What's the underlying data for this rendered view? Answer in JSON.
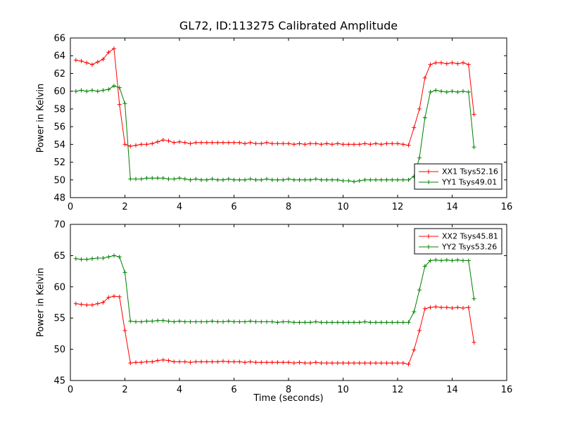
{
  "title": "GL72, ID:113275 Calibrated Amplitude",
  "chart_data": [
    {
      "type": "line",
      "ylabel": "Power in Kelvin",
      "xlabel": "",
      "xlim": [
        0,
        16
      ],
      "ylim": [
        48,
        66
      ],
      "xticks": [
        0,
        2,
        4,
        6,
        8,
        10,
        12,
        14,
        16
      ],
      "yticks": [
        48,
        50,
        52,
        54,
        56,
        58,
        60,
        62,
        64,
        66
      ],
      "grid": false,
      "legend_loc": "lower right",
      "x": [
        0.2,
        0.4,
        0.6,
        0.8,
        1.0,
        1.2,
        1.4,
        1.6,
        1.8,
        2.0,
        2.2,
        2.4,
        2.6,
        2.8,
        3.0,
        3.2,
        3.4,
        3.6,
        3.8,
        4.0,
        4.2,
        4.4,
        4.6,
        4.8,
        5.0,
        5.2,
        5.4,
        5.6,
        5.8,
        6.0,
        6.2,
        6.4,
        6.6,
        6.8,
        7.0,
        7.2,
        7.4,
        7.6,
        7.8,
        8.0,
        8.2,
        8.4,
        8.6,
        8.8,
        9.0,
        9.2,
        9.4,
        9.6,
        9.8,
        10.0,
        10.2,
        10.4,
        10.6,
        10.8,
        11.0,
        11.2,
        11.4,
        11.6,
        11.8,
        12.0,
        12.2,
        12.4,
        12.6,
        12.8,
        13.0,
        13.2,
        13.4,
        13.6,
        13.8,
        14.0,
        14.2,
        14.4,
        14.6,
        14.8
      ],
      "series": [
        {
          "name": "XX1 Tsys52.16",
          "color": "#ff0000",
          "marker": "+",
          "values": [
            63.5,
            63.4,
            63.2,
            63.0,
            63.3,
            63.6,
            64.4,
            64.8,
            58.5,
            54.0,
            53.8,
            53.9,
            54.0,
            54.0,
            54.1,
            54.3,
            54.5,
            54.4,
            54.2,
            54.3,
            54.2,
            54.1,
            54.2,
            54.2,
            54.2,
            54.2,
            54.2,
            54.2,
            54.2,
            54.2,
            54.2,
            54.1,
            54.2,
            54.1,
            54.1,
            54.2,
            54.1,
            54.1,
            54.1,
            54.1,
            54.0,
            54.1,
            54.0,
            54.1,
            54.1,
            54.0,
            54.1,
            54.0,
            54.1,
            54.0,
            54.0,
            54.0,
            54.0,
            54.1,
            54.0,
            54.1,
            54.0,
            54.1,
            54.1,
            54.1,
            54.0,
            53.9,
            55.9,
            58.0,
            61.5,
            63.0,
            63.2,
            63.2,
            63.1,
            63.2,
            63.1,
            63.2,
            63.0,
            57.4
          ]
        },
        {
          "name": "YY1 Tsys49.01",
          "color": "#008000",
          "marker": "+",
          "values": [
            60.0,
            60.1,
            60.0,
            60.1,
            60.0,
            60.1,
            60.2,
            60.6,
            60.4,
            58.6,
            50.1,
            50.1,
            50.1,
            50.2,
            50.2,
            50.2,
            50.2,
            50.1,
            50.1,
            50.2,
            50.1,
            50.0,
            50.1,
            50.0,
            50.0,
            50.1,
            50.0,
            50.0,
            50.1,
            50.0,
            50.0,
            50.0,
            50.1,
            50.0,
            50.0,
            50.1,
            50.0,
            50.0,
            50.0,
            50.1,
            50.0,
            50.0,
            50.0,
            50.0,
            50.1,
            50.0,
            50.0,
            50.0,
            50.0,
            49.9,
            49.9,
            49.8,
            49.9,
            50.0,
            50.0,
            50.0,
            50.0,
            50.0,
            50.0,
            50.0,
            50.0,
            50.0,
            50.4,
            52.5,
            57.0,
            59.9,
            60.1,
            60.0,
            59.9,
            60.0,
            59.9,
            60.0,
            59.9,
            53.7
          ]
        }
      ]
    },
    {
      "type": "line",
      "ylabel": "Power in Kelvin",
      "xlabel": "Time (seconds)",
      "xlim": [
        0,
        16
      ],
      "ylim": [
        45,
        70
      ],
      "xticks": [
        0,
        2,
        4,
        6,
        8,
        10,
        12,
        14,
        16
      ],
      "yticks": [
        45,
        50,
        55,
        60,
        65,
        70
      ],
      "grid": false,
      "legend_loc": "upper right",
      "x": [
        0.2,
        0.4,
        0.6,
        0.8,
        1.0,
        1.2,
        1.4,
        1.6,
        1.8,
        2.0,
        2.2,
        2.4,
        2.6,
        2.8,
        3.0,
        3.2,
        3.4,
        3.6,
        3.8,
        4.0,
        4.2,
        4.4,
        4.6,
        4.8,
        5.0,
        5.2,
        5.4,
        5.6,
        5.8,
        6.0,
        6.2,
        6.4,
        6.6,
        6.8,
        7.0,
        7.2,
        7.4,
        7.6,
        7.8,
        8.0,
        8.2,
        8.4,
        8.6,
        8.8,
        9.0,
        9.2,
        9.4,
        9.6,
        9.8,
        10.0,
        10.2,
        10.4,
        10.6,
        10.8,
        11.0,
        11.2,
        11.4,
        11.6,
        11.8,
        12.0,
        12.2,
        12.4,
        12.6,
        12.8,
        13.0,
        13.2,
        13.4,
        13.6,
        13.8,
        14.0,
        14.2,
        14.4,
        14.6,
        14.8
      ],
      "series": [
        {
          "name": "XX2 Tsys45.81",
          "color": "#ff0000",
          "marker": "+",
          "values": [
            57.3,
            57.2,
            57.1,
            57.1,
            57.3,
            57.5,
            58.3,
            58.5,
            58.4,
            53.0,
            47.8,
            47.9,
            47.9,
            48.0,
            48.0,
            48.2,
            48.3,
            48.2,
            48.0,
            48.0,
            48.0,
            47.9,
            48.0,
            48.0,
            48.0,
            48.0,
            48.0,
            48.1,
            48.0,
            48.0,
            48.0,
            47.9,
            48.0,
            47.9,
            47.9,
            47.9,
            47.9,
            47.9,
            47.9,
            47.9,
            47.8,
            47.9,
            47.8,
            47.8,
            47.9,
            47.8,
            47.8,
            47.8,
            47.8,
            47.8,
            47.8,
            47.8,
            47.8,
            47.8,
            47.8,
            47.8,
            47.8,
            47.8,
            47.8,
            47.8,
            47.8,
            47.6,
            49.9,
            53.0,
            56.5,
            56.7,
            56.8,
            56.7,
            56.7,
            56.6,
            56.7,
            56.6,
            56.7,
            51.1
          ]
        },
        {
          "name": "YY2 Tsys53.26",
          "color": "#008000",
          "marker": "+",
          "values": [
            64.5,
            64.4,
            64.4,
            64.5,
            64.6,
            64.6,
            64.8,
            65.0,
            64.8,
            62.3,
            54.5,
            54.4,
            54.4,
            54.5,
            54.5,
            54.6,
            54.6,
            54.5,
            54.4,
            54.5,
            54.4,
            54.4,
            54.4,
            54.4,
            54.4,
            54.5,
            54.4,
            54.4,
            54.5,
            54.4,
            54.4,
            54.4,
            54.5,
            54.4,
            54.4,
            54.4,
            54.4,
            54.3,
            54.4,
            54.4,
            54.3,
            54.3,
            54.3,
            54.3,
            54.4,
            54.3,
            54.3,
            54.3,
            54.3,
            54.3,
            54.3,
            54.3,
            54.3,
            54.4,
            54.3,
            54.3,
            54.3,
            54.3,
            54.3,
            54.3,
            54.3,
            54.3,
            56.0,
            59.5,
            63.3,
            64.2,
            64.3,
            64.2,
            64.3,
            64.2,
            64.3,
            64.2,
            64.2,
            58.1
          ]
        }
      ]
    }
  ]
}
